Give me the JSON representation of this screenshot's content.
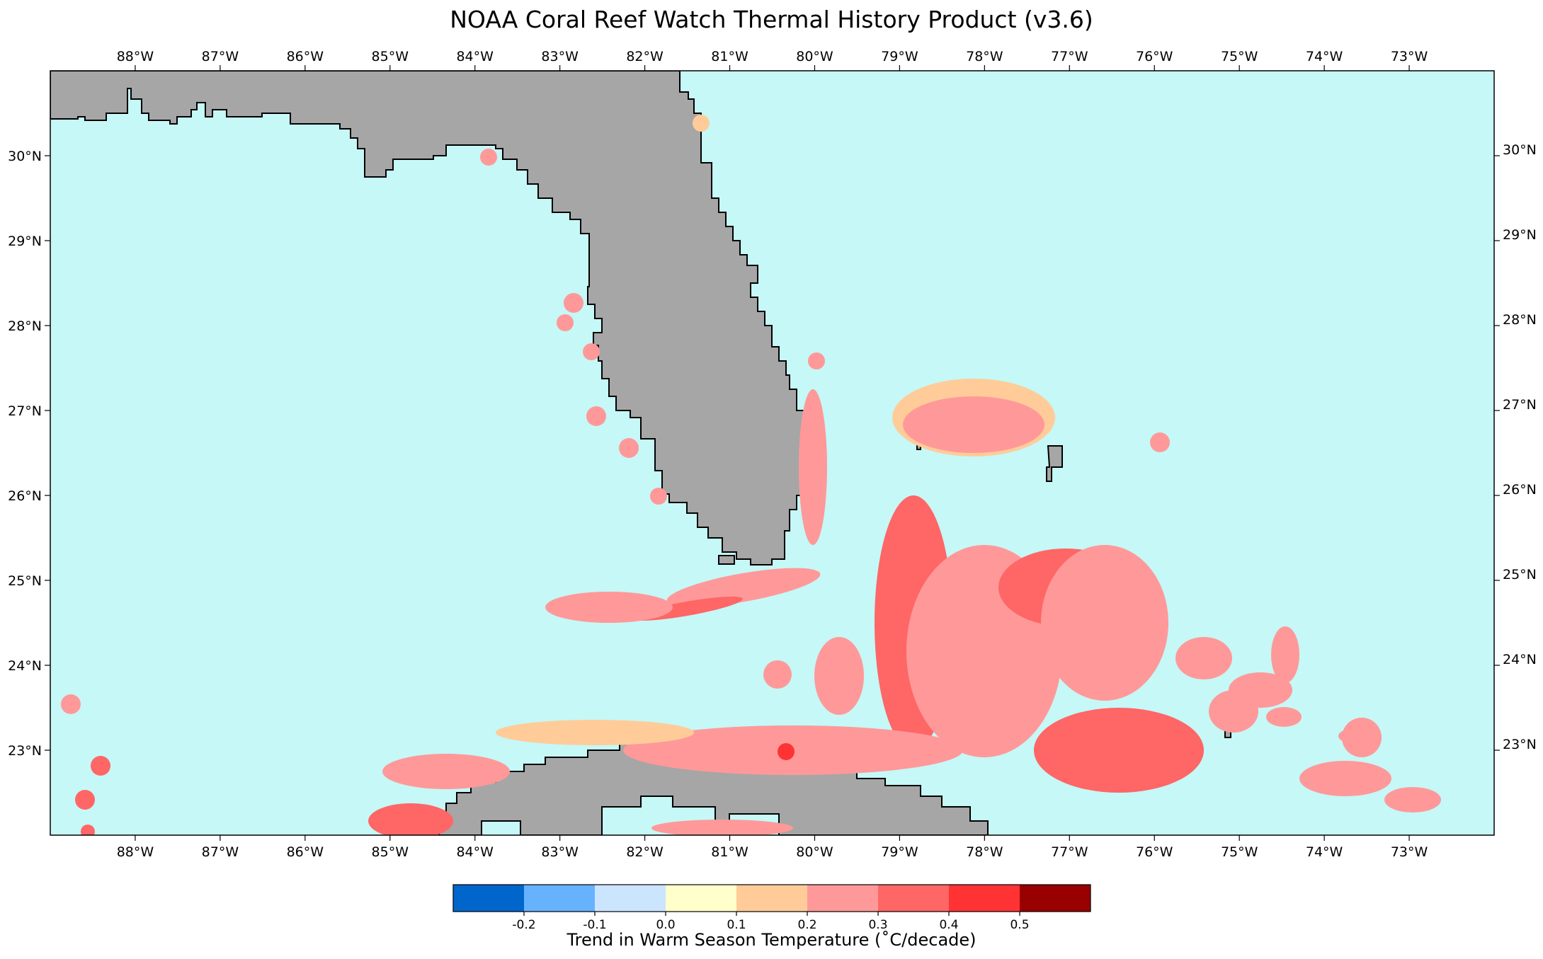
{
  "title": "NOAA Coral Reef Watch Thermal History Product (v3.6)",
  "map": {
    "lon_range": [
      -89.0,
      -72.0
    ],
    "lat_range": [
      22.0,
      31.0
    ],
    "lon_ticks": [
      "88°W",
      "87°W",
      "86°W",
      "85°W",
      "84°W",
      "83°W",
      "82°W",
      "81°W",
      "80°W",
      "79°W",
      "78°W",
      "77°W",
      "76°W",
      "75°W",
      "74°W",
      "73°W"
    ],
    "lat_ticks": [
      "30°N",
      "29°N",
      "28°N",
      "27°N",
      "26°N",
      "25°N",
      "24°N",
      "23°N"
    ],
    "ocean_color": "#c5f8f7",
    "land_color": "#a6a6a6",
    "coastline_color": "#000000"
  },
  "colorbar": {
    "label": "Trend in Warm Season Temperature (˚C/decade)",
    "tick_labels": [
      "-0.2",
      "-0.1",
      "0.0",
      "0.1",
      "0.2",
      "0.3",
      "0.4",
      "0.5"
    ],
    "colors": [
      "#0066cc",
      "#66b2ff",
      "#cce5ff",
      "#ffffcc",
      "#ffcc99",
      "#ff9999",
      "#ff6666",
      "#ff3333",
      "#990000"
    ]
  }
}
